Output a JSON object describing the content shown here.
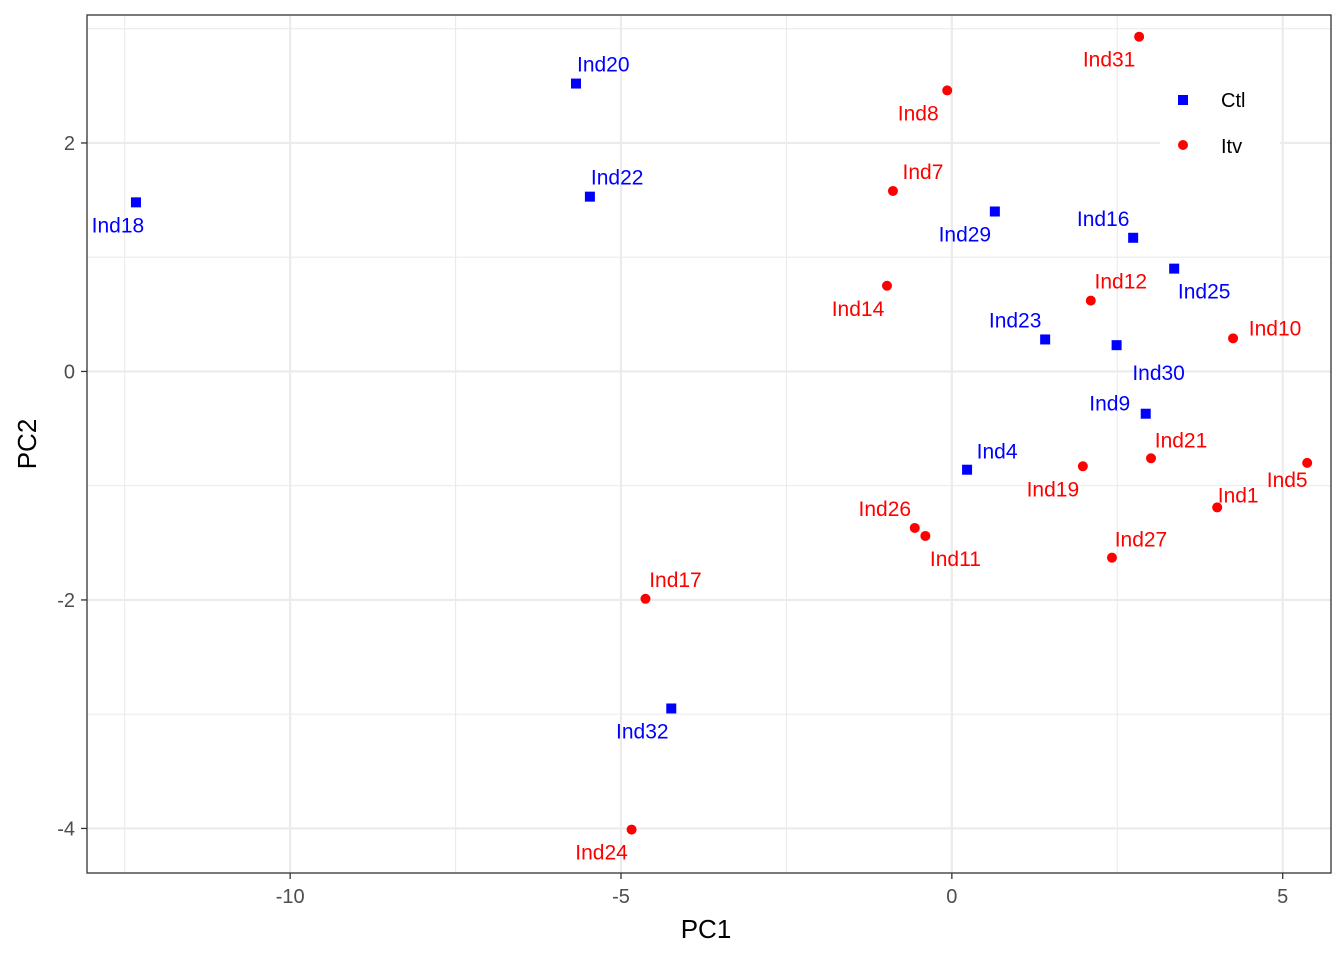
{
  "chart_data": {
    "type": "scatter",
    "title": "",
    "xlabel": "PC1",
    "ylabel": "PC2",
    "xlim": [
      -13.07,
      5.73
    ],
    "ylim": [
      -4.39,
      3.12
    ],
    "xticks": [
      -10,
      -5,
      0,
      5
    ],
    "yticks": [
      -4,
      -2,
      0,
      2
    ],
    "xtick_labels": [
      "-10",
      "-5",
      "0",
      "5"
    ],
    "ytick_labels": [
      "-4",
      "-2",
      "0",
      "2"
    ],
    "grid": true,
    "legend_position": "top-right",
    "series": [
      {
        "name": "Ctl",
        "color": "#0000ff",
        "marker": "square",
        "points": [
          {
            "label": "Ind20",
            "x": -5.68,
            "y": 2.52
          },
          {
            "label": "Ind22",
            "x": -5.47,
            "y": 1.53
          },
          {
            "label": "Ind18",
            "x": -12.33,
            "y": 1.48
          },
          {
            "label": "Ind29",
            "x": 0.65,
            "y": 1.4
          },
          {
            "label": "Ind16",
            "x": 2.74,
            "y": 1.17
          },
          {
            "label": "Ind25",
            "x": 3.36,
            "y": 0.9
          },
          {
            "label": "Ind23",
            "x": 1.41,
            "y": 0.28
          },
          {
            "label": "Ind30",
            "x": 2.49,
            "y": 0.23
          },
          {
            "label": "Ind9",
            "x": 2.93,
            "y": -0.37
          },
          {
            "label": "Ind4",
            "x": 0.23,
            "y": -0.86
          },
          {
            "label": "Ind32",
            "x": -4.24,
            "y": -2.95
          }
        ]
      },
      {
        "name": "Itv",
        "color": "#ff0000",
        "marker": "circle",
        "points": [
          {
            "label": "Ind31",
            "x": 2.83,
            "y": 2.93
          },
          {
            "label": "Ind8",
            "x": -0.07,
            "y": 2.46
          },
          {
            "label": "Ind7",
            "x": -0.89,
            "y": 1.58
          },
          {
            "label": "Ind14",
            "x": -0.98,
            "y": 0.75
          },
          {
            "label": "Ind12",
            "x": 2.1,
            "y": 0.62
          },
          {
            "label": "Ind10",
            "x": 4.25,
            "y": 0.29
          },
          {
            "label": "Ind21",
            "x": 3.01,
            "y": -0.76
          },
          {
            "label": "Ind19",
            "x": 1.98,
            "y": -0.83
          },
          {
            "label": "Ind5",
            "x": 5.37,
            "y": -0.8
          },
          {
            "label": "Ind1",
            "x": 4.01,
            "y": -1.19
          },
          {
            "label": "Ind26",
            "x": -0.56,
            "y": -1.37
          },
          {
            "label": "Ind11",
            "x": -0.4,
            "y": -1.44
          },
          {
            "label": "Ind27",
            "x": 2.42,
            "y": -1.63
          },
          {
            "label": "Ind17",
            "x": -4.63,
            "y": -1.99
          },
          {
            "label": "Ind24",
            "x": -4.84,
            "y": -4.01
          }
        ]
      }
    ]
  }
}
